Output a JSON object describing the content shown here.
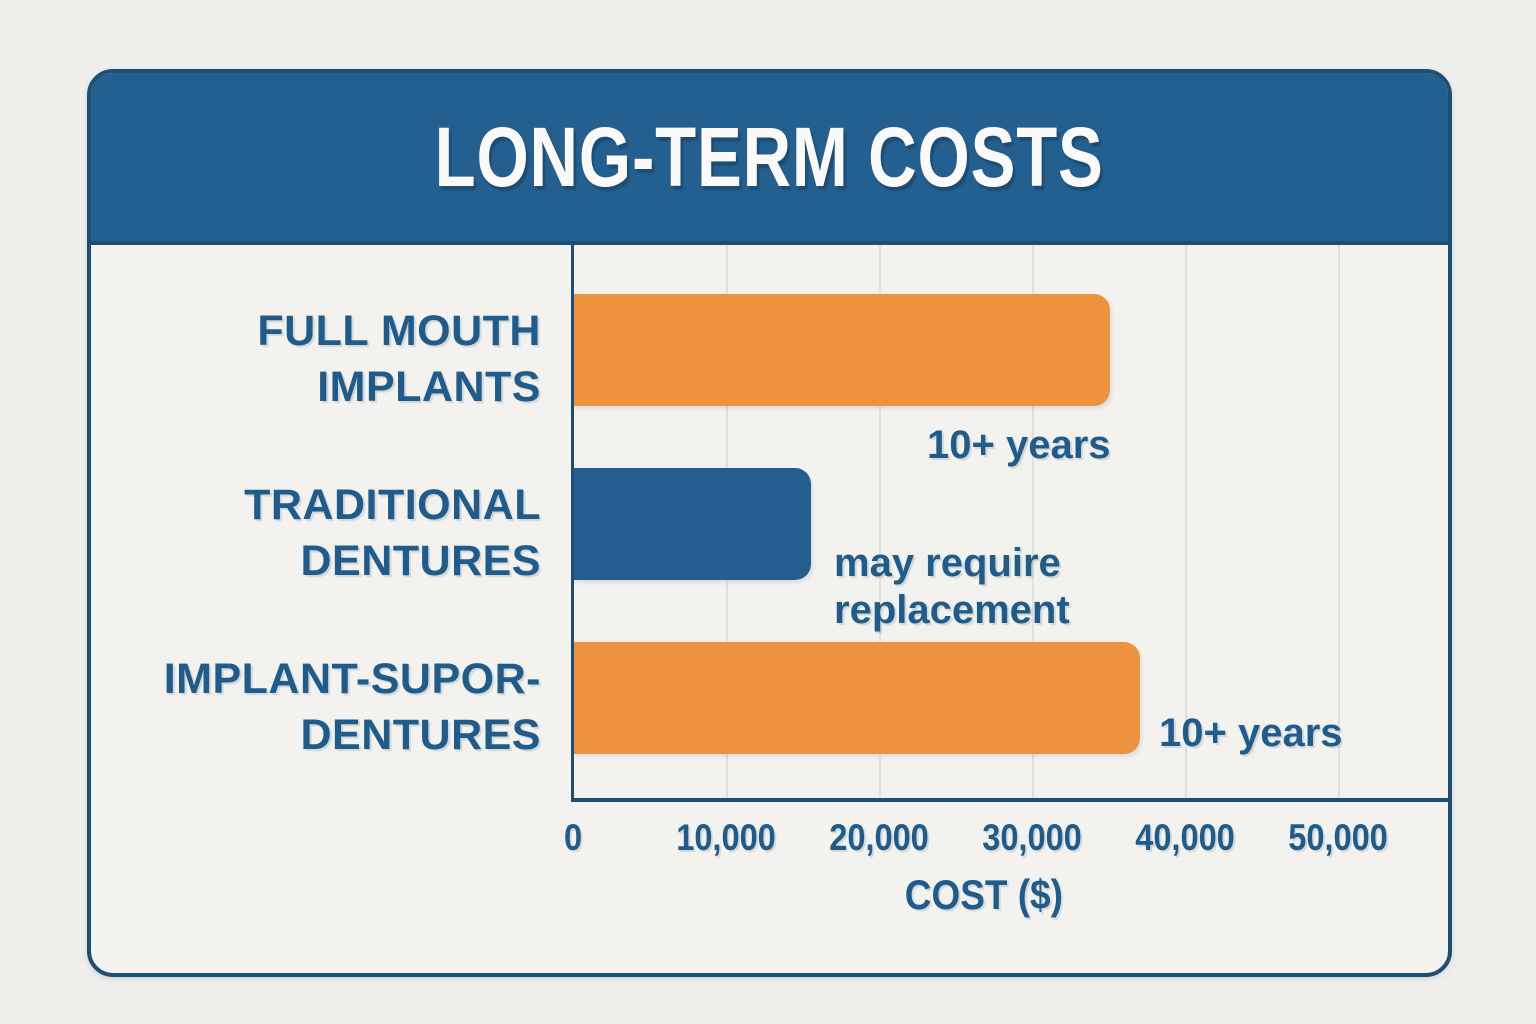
{
  "chart_data": {
    "type": "bar",
    "orientation": "horizontal",
    "title": "LONG-TERM COSTS",
    "xlabel": "COST ($)",
    "xlim": [
      0,
      57000
    ],
    "x_tick_values": [
      0,
      10000,
      20000,
      30000,
      40000,
      50000
    ],
    "x_tick_labels": [
      "0",
      "10,000",
      "20,000",
      "30,000",
      "40,000",
      "50,000"
    ],
    "grid": "vertical gridlines at each x tick",
    "legend": "none",
    "categories": [
      "FULL MOUTH IMPLANTS",
      "TRADITIONAL DENTURES",
      "IMPLANT-SUPOR- DENTURES"
    ],
    "categories_display": [
      {
        "line1": "FULL MOUTH",
        "line2": "IMPLANTS"
      },
      {
        "line1": "TRADITIONAL",
        "line2": "DENTURES"
      },
      {
        "line1": "IMPLANT-SUPOR-",
        "line2": "DENTURES"
      }
    ],
    "values": [
      35000,
      15500,
      37000
    ],
    "bar_colors": [
      "#ED9340",
      "#235E8E",
      "#ED9340"
    ],
    "annotations": [
      "10+ years",
      "may require replacement",
      "10+ years"
    ]
  },
  "colors": {
    "background": "#F0EEEA",
    "card_background": "#F4F2EF",
    "card_border": "#1D4E76",
    "header_background": "#24608F",
    "title_text": "#FBFAF8",
    "label_text": "#1F5C8B",
    "orange_bar": "#ED9340",
    "blue_bar": "#235E8E",
    "gridline": "#E2E0DC"
  }
}
